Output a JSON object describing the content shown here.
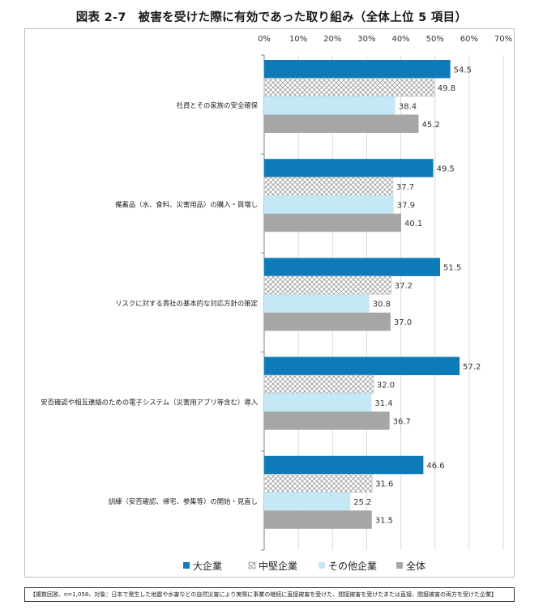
{
  "title": "図表 2-7　被害を受けた際に有効であった取り組み（全体上位 5 項目）",
  "footnote": "【複数回答、n=1,058、対象：日本で発生した地震や水害などの自然災害により実際に事業の継続に直接被害を受けた、間接被害を受けたまたは直接、間接被害の両方を受けた企業】",
  "chart_data": {
    "type": "bar",
    "orientation": "horizontal",
    "xlim": [
      0,
      70
    ],
    "x_ticks": [
      "0%",
      "10%",
      "20%",
      "30%",
      "40%",
      "50%",
      "60%",
      "70%"
    ],
    "x_tick_values": [
      0,
      10,
      20,
      30,
      40,
      50,
      60,
      70
    ],
    "grid": true,
    "legend_position": "bottom",
    "categories": [
      "社員とその家族の安全確保",
      "備蓄品（水、食料、災害用品）の購入・買増し",
      "リスクに対する貴社の基本的な対応方針の策定",
      "安否確認や相互連絡のための電子システム（災害用アプリ等含む）導入",
      "訓練（安否確認、帰宅、参集等）の開始・見直し"
    ],
    "series": [
      {
        "name": "大企業",
        "color": "#0e7bb8",
        "pattern": "solid",
        "values": [
          54.5,
          49.5,
          51.5,
          57.2,
          46.6
        ],
        "labels": [
          "54.5",
          "49.5",
          "51.5",
          "57.2",
          "46.6"
        ]
      },
      {
        "name": "中堅企業",
        "color": "#ffffff",
        "pattern": "crosshatch",
        "values": [
          49.8,
          37.7,
          37.2,
          32.0,
          31.6
        ],
        "labels": [
          "49.8",
          "37.7",
          "37.2",
          "32.0",
          "31.6"
        ]
      },
      {
        "name": "その他企業",
        "color": "#c5e8f7",
        "pattern": "solid",
        "values": [
          38.4,
          37.9,
          30.8,
          31.4,
          25.2
        ],
        "labels": [
          "38.4",
          "37.9",
          "30.8",
          "31.4",
          "25.2"
        ]
      },
      {
        "name": "全体",
        "color": "#a6a6a6",
        "pattern": "solid",
        "values": [
          45.2,
          40.1,
          37.0,
          36.7,
          31.5
        ],
        "labels": [
          "45.2",
          "40.1",
          "37.0",
          "36.7",
          "31.5"
        ]
      }
    ]
  }
}
